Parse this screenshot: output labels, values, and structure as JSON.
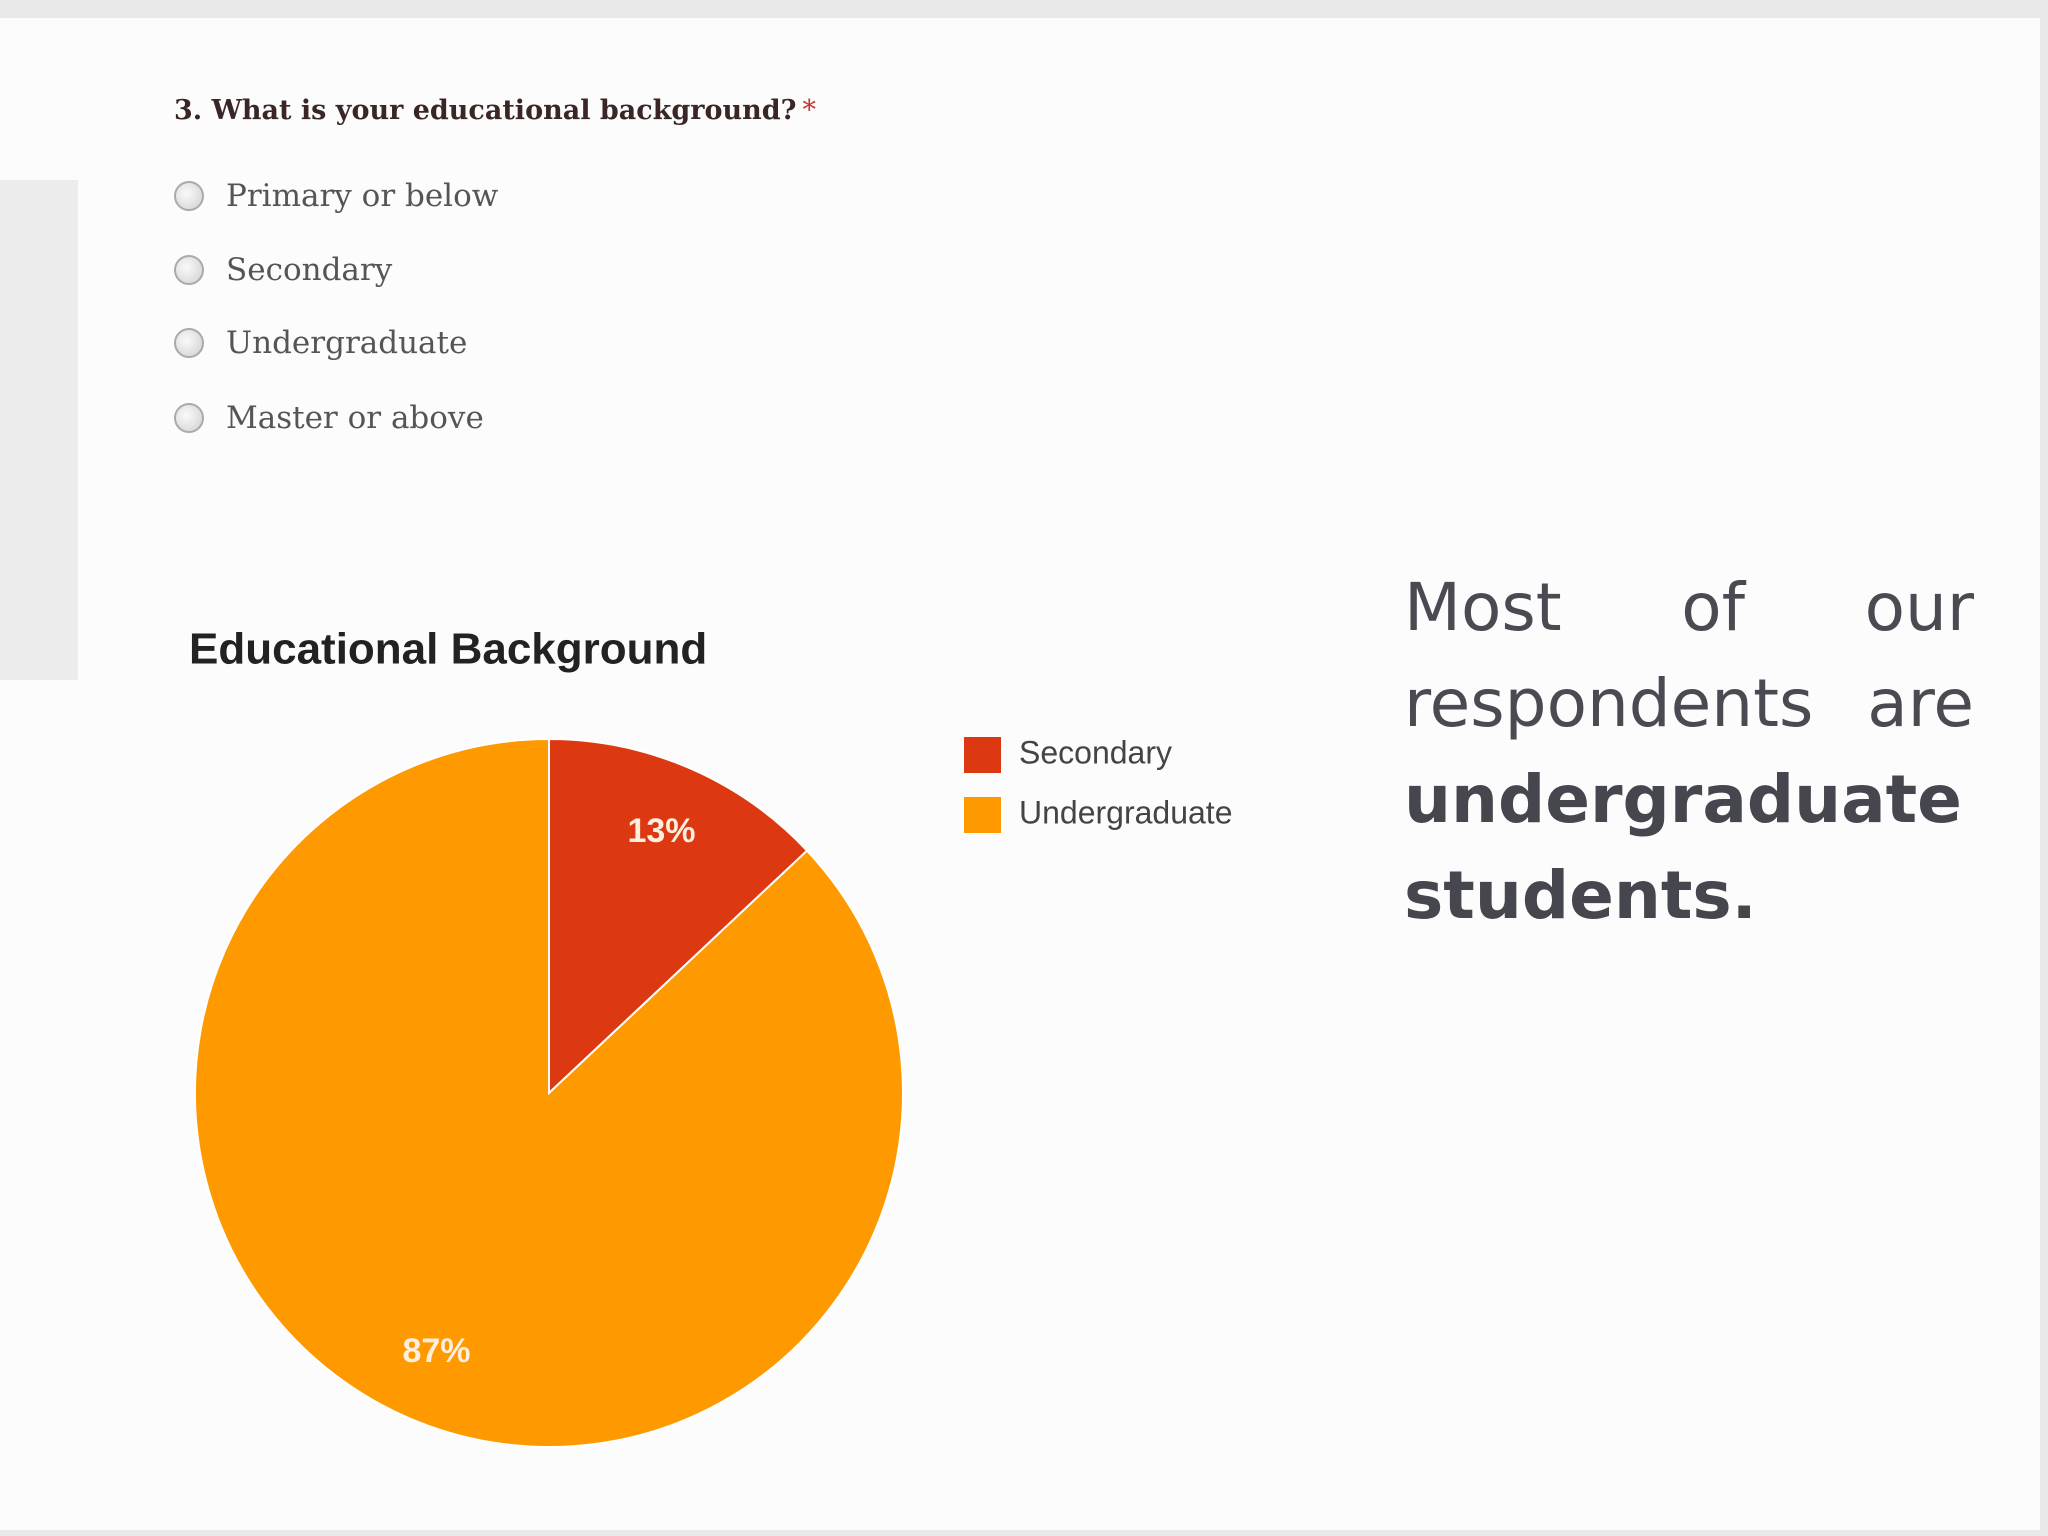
{
  "form": {
    "question": "3. What is your educational background?",
    "required": "*",
    "options": [
      "Primary or below",
      "Secondary",
      "Undergraduate",
      "Master or above"
    ]
  },
  "chart_data": {
    "type": "pie",
    "title": "Educational Background",
    "categories": [
      "Secondary",
      "Undergraduate"
    ],
    "values": [
      13,
      87
    ],
    "value_labels": [
      "13%",
      "87%"
    ],
    "colors": [
      "#dc3912",
      "#ff9900"
    ],
    "legend": "right"
  },
  "summary": {
    "text": "Most of our respondents are",
    "emphasis": "undergraduate students."
  }
}
